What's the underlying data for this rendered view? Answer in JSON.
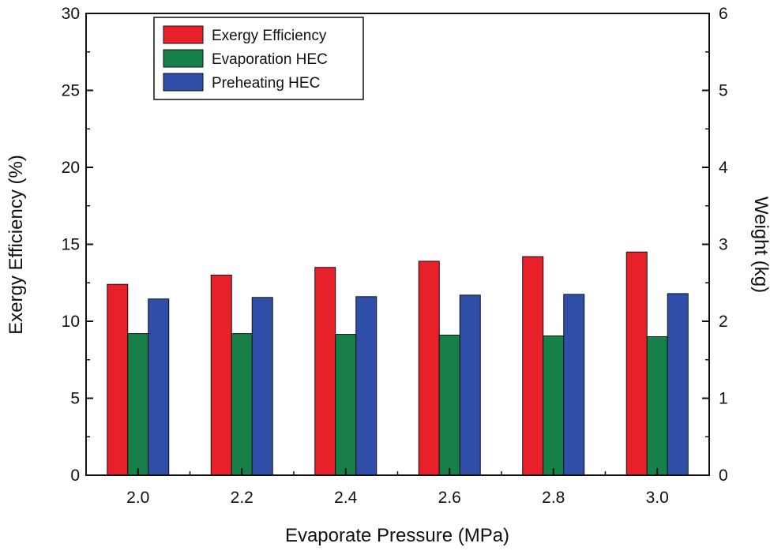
{
  "chart_data": {
    "type": "bar",
    "categories": [
      "2.0",
      "2.2",
      "2.4",
      "2.6",
      "2.8",
      "3.0"
    ],
    "series": [
      {
        "name": "Exergy Efficiency",
        "axis": "left",
        "color": "#e8202a",
        "values": [
          12.4,
          13.0,
          13.5,
          13.9,
          14.2,
          14.5
        ]
      },
      {
        "name": "Evaporation HEC",
        "axis": "right",
        "color": "#168048",
        "values": [
          1.84,
          1.84,
          1.83,
          1.82,
          1.81,
          1.8
        ]
      },
      {
        "name": "Preheating HEC",
        "axis": "right",
        "color": "#2e4ea8",
        "values": [
          2.29,
          2.31,
          2.32,
          2.34,
          2.35,
          2.36
        ]
      }
    ],
    "xlabel": "Evaporate Pressure (MPa)",
    "ylabel": "Exergy Efficiency (%)",
    "y2label": "Weight (kg)",
    "ylim": [
      0,
      30
    ],
    "y2lim": [
      0,
      6
    ],
    "yticks": [
      "0",
      "5",
      "10",
      "15",
      "20",
      "25",
      "30"
    ],
    "y2ticks": [
      "0",
      "1",
      "2",
      "3",
      "4",
      "5",
      "6"
    ],
    "legend_position": "top-left",
    "grid": false
  }
}
